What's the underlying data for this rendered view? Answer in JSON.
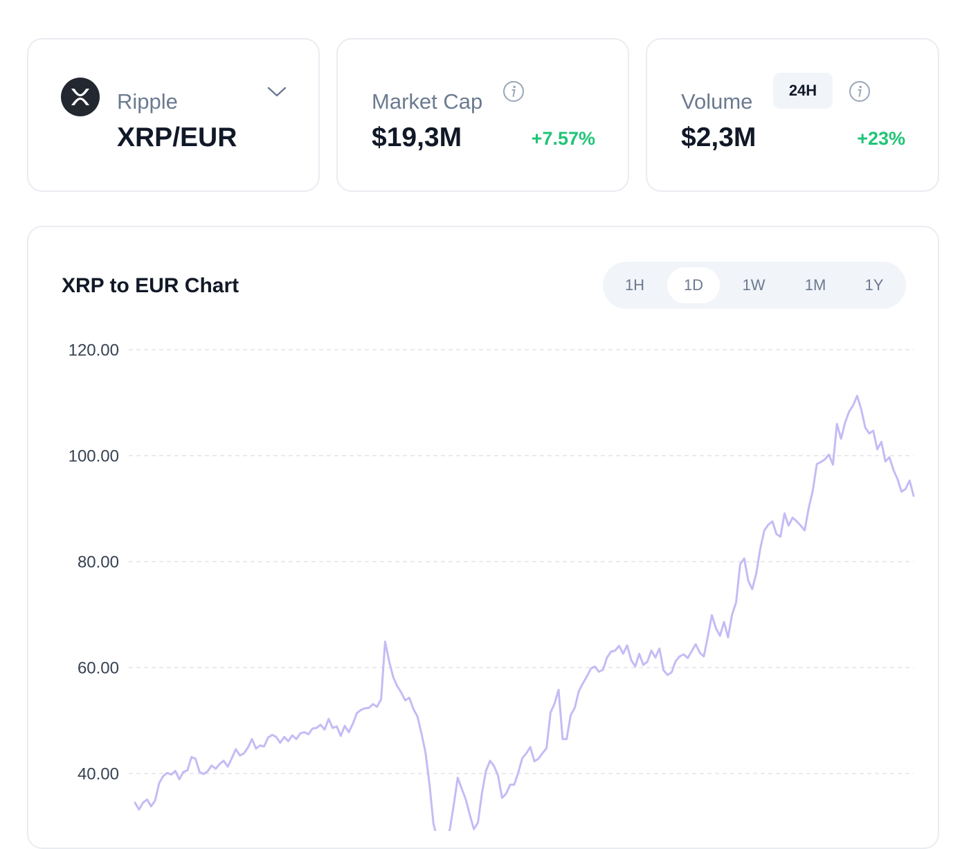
{
  "asset_card": {
    "name": "Ripple",
    "pair": "XRP/EUR",
    "icon": "xrp-logo-icon",
    "dropdown_icon": "chevron-down-icon"
  },
  "market_cap_card": {
    "label": "Market Cap",
    "value": "$19,3M",
    "change": "+7.57%",
    "info_icon": "info-icon"
  },
  "volume_card": {
    "label": "Volume",
    "period_badge": "24H",
    "value": "$2,3M",
    "change": "+23%",
    "info_icon": "info-icon"
  },
  "colors": {
    "positive": "#20c477",
    "line": "#c4bbf5",
    "muted_text": "#6b7a90",
    "card_border": "#e9ecf1"
  },
  "chart_panel": {
    "title": "XRP to EUR Chart",
    "ranges": [
      "1H",
      "1D",
      "1W",
      "1M",
      "1Y"
    ],
    "active_range": "1D"
  },
  "chart_data": {
    "type": "line",
    "title": "XRP to EUR Chart",
    "xlabel": "",
    "ylabel": "",
    "yticks": [
      "120.00",
      "100.00",
      "80.00",
      "60.00",
      "40.00"
    ],
    "ylim": [
      26,
      120
    ],
    "grid": true,
    "series": [
      {
        "values": [
          34.5,
          33.2,
          34.5,
          35.1,
          33.8,
          34.9,
          38.2,
          39.5,
          40.1,
          39.8,
          40.5,
          38.9,
          40.3,
          40.6,
          43.1,
          42.8,
          40.3,
          39.9,
          40.4,
          41.5,
          40.9,
          41.8,
          42.4,
          41.3,
          42.9,
          44.6,
          43.4,
          43.8,
          44.9,
          46.5,
          44.7,
          45.3,
          45.1,
          46.8,
          47.3,
          46.9,
          45.8,
          46.9,
          46.1,
          47.2,
          46.5,
          47.6,
          47.8,
          47.4,
          48.5,
          48.6,
          49.2,
          48.3,
          50.3,
          48.6,
          48.9,
          47.1,
          49.0,
          47.8,
          49.4,
          51.4,
          52.0,
          52.3,
          52.4,
          53.1,
          52.6,
          54.0,
          64.9,
          61.2,
          58.2,
          56.5,
          55.3,
          53.8,
          54.3,
          52.2,
          50.8,
          47.6,
          44.0,
          38.0,
          30.5,
          27.5,
          26.8,
          26.9,
          29.3,
          34.0,
          39.2,
          37.1,
          35.1,
          32.2,
          29.5,
          30.7,
          36.3,
          40.5,
          42.4,
          41.4,
          39.6,
          35.4,
          36.2,
          37.9,
          37.9,
          40.2,
          42.9,
          43.8,
          45.0,
          42.3,
          42.8,
          43.8,
          44.8,
          51.5,
          53.2,
          55.8,
          46.5,
          46.5,
          51.0,
          52.4,
          55.5,
          57.0,
          58.3,
          59.8,
          60.2,
          59.2,
          59.6,
          61.9,
          63.0,
          63.2,
          64.1,
          62.6,
          64.2,
          61.4,
          60.2,
          62.6,
          60.5,
          61.1,
          63.2,
          61.9,
          63.6,
          59.5,
          58.6,
          59.1,
          61.2,
          62.1,
          62.5,
          61.8,
          63.1,
          64.4,
          62.8,
          62.1,
          65.9,
          69.9,
          67.4,
          66.0,
          68.6,
          65.7,
          70.0,
          72.3,
          79.5,
          80.6,
          76.4,
          74.8,
          77.8,
          82.5,
          85.9,
          87.0,
          87.6,
          85.2,
          84.7,
          89.1,
          86.8,
          88.3,
          87.6,
          86.8,
          85.9,
          90.1,
          93.4,
          98.4,
          98.8,
          99.3,
          100.2,
          98.3,
          106.0,
          103.2,
          106.2,
          108.3,
          109.5,
          111.3,
          108.8,
          105.3,
          104.2,
          104.7,
          101.2,
          102.6,
          98.9,
          99.7,
          97.3,
          95.6,
          93.2,
          93.7,
          95.3,
          92.4
        ]
      }
    ]
  }
}
